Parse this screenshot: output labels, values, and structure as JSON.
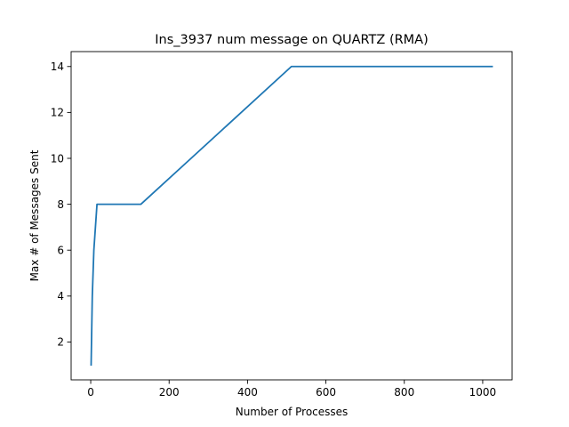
{
  "chart_data": {
    "type": "line",
    "title": "Ins_3937 num message on QUARTZ (RMA)",
    "xlabel": "Number of Processes",
    "ylabel": "Max # of Messages Sent",
    "xlim": [
      -50,
      1075
    ],
    "ylim": [
      0.35,
      14.65
    ],
    "xticks": [
      0,
      200,
      400,
      600,
      800,
      1000
    ],
    "yticks": [
      2,
      4,
      6,
      8,
      10,
      12,
      14
    ],
    "grid": false,
    "legend": "none",
    "series": [
      {
        "color": "#1f77b4",
        "x": [
          1,
          2,
          4,
          8,
          16,
          32,
          64,
          128,
          256,
          512,
          1024
        ],
        "y": [
          1,
          2,
          4,
          6,
          8,
          8,
          8,
          8,
          10,
          14,
          14
        ]
      }
    ]
  }
}
